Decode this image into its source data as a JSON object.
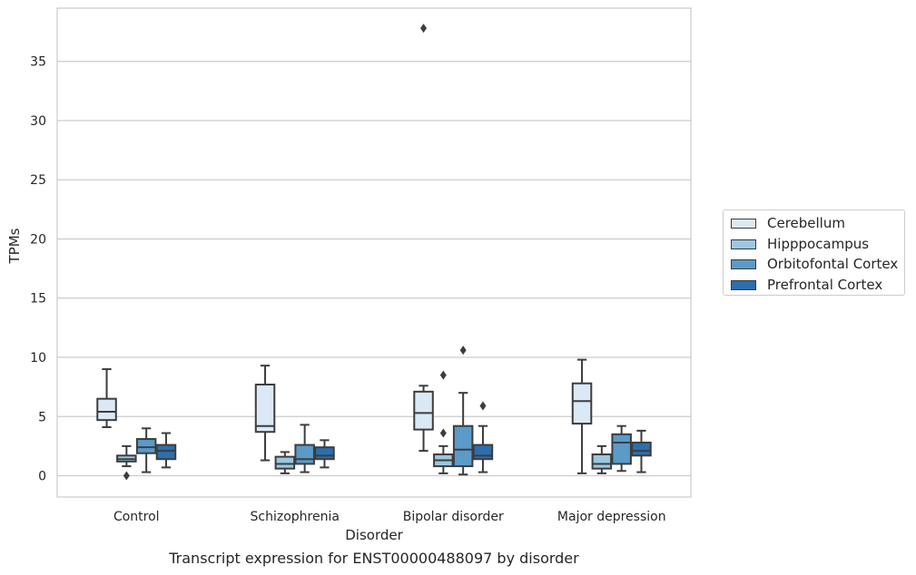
{
  "chart_data": {
    "type": "boxplot",
    "caption": "Transcript expression for ENST00000488097 by disorder",
    "xlabel": "Disorder",
    "ylabel": "TPMs",
    "ylim": [
      -1.8,
      39.5
    ],
    "yticks": [
      0,
      5,
      10,
      15,
      20,
      25,
      30,
      35
    ],
    "grid": true,
    "legend_position": "right",
    "categories": [
      "Control",
      "Schizophrenia",
      "Bipolar disorder",
      "Major depression"
    ],
    "series": [
      {
        "name": "Cerebellum",
        "color": "#dbe9f6",
        "boxes": [
          {
            "whislo": 4.1,
            "q1": 4.7,
            "med": 5.4,
            "q3": 6.5,
            "whishi": 9.0,
            "fliers": []
          },
          {
            "whislo": 1.3,
            "q1": 3.7,
            "med": 4.2,
            "q3": 7.7,
            "whishi": 9.3,
            "fliers": []
          },
          {
            "whislo": 2.1,
            "q1": 3.9,
            "med": 5.3,
            "q3": 7.1,
            "whishi": 7.6,
            "fliers": [
              37.8
            ]
          },
          {
            "whislo": 0.2,
            "q1": 4.4,
            "med": 6.3,
            "q3": 7.8,
            "whishi": 9.8,
            "fliers": []
          }
        ]
      },
      {
        "name": "Hipppocampus",
        "color": "#9ac8e0",
        "boxes": [
          {
            "whislo": 0.8,
            "q1": 1.2,
            "med": 1.4,
            "q3": 1.7,
            "whishi": 2.5,
            "fliers": [
              0.0
            ]
          },
          {
            "whislo": 0.2,
            "q1": 0.6,
            "med": 1.0,
            "q3": 1.6,
            "whishi": 2.0,
            "fliers": []
          },
          {
            "whislo": 0.2,
            "q1": 0.8,
            "med": 1.3,
            "q3": 1.8,
            "whishi": 2.5,
            "fliers": [
              8.5,
              3.6
            ]
          },
          {
            "whislo": 0.2,
            "q1": 0.6,
            "med": 1.0,
            "q3": 1.8,
            "whishi": 2.5,
            "fliers": []
          }
        ]
      },
      {
        "name": "Orbitofontal Cortex",
        "color": "#5a9bc8",
        "boxes": [
          {
            "whislo": 0.3,
            "q1": 1.9,
            "med": 2.4,
            "q3": 3.1,
            "whishi": 4.0,
            "fliers": []
          },
          {
            "whislo": 0.3,
            "q1": 1.0,
            "med": 1.4,
            "q3": 2.6,
            "whishi": 4.3,
            "fliers": []
          },
          {
            "whislo": 0.1,
            "q1": 0.8,
            "med": 2.2,
            "q3": 4.2,
            "whishi": 7.0,
            "fliers": [
              10.6
            ]
          },
          {
            "whislo": 0.4,
            "q1": 1.0,
            "med": 2.8,
            "q3": 3.5,
            "whishi": 4.2,
            "fliers": []
          }
        ]
      },
      {
        "name": "Prefrontal Cortex",
        "color": "#2b6fae",
        "boxes": [
          {
            "whislo": 0.7,
            "q1": 1.4,
            "med": 2.1,
            "q3": 2.6,
            "whishi": 3.6,
            "fliers": []
          },
          {
            "whislo": 0.7,
            "q1": 1.4,
            "med": 1.7,
            "q3": 2.4,
            "whishi": 3.0,
            "fliers": []
          },
          {
            "whislo": 0.3,
            "q1": 1.4,
            "med": 1.7,
            "q3": 2.6,
            "whishi": 4.2,
            "fliers": [
              5.9
            ]
          },
          {
            "whislo": 0.3,
            "q1": 1.7,
            "med": 2.1,
            "q3": 2.8,
            "whishi": 3.8,
            "fliers": []
          }
        ]
      }
    ]
  }
}
